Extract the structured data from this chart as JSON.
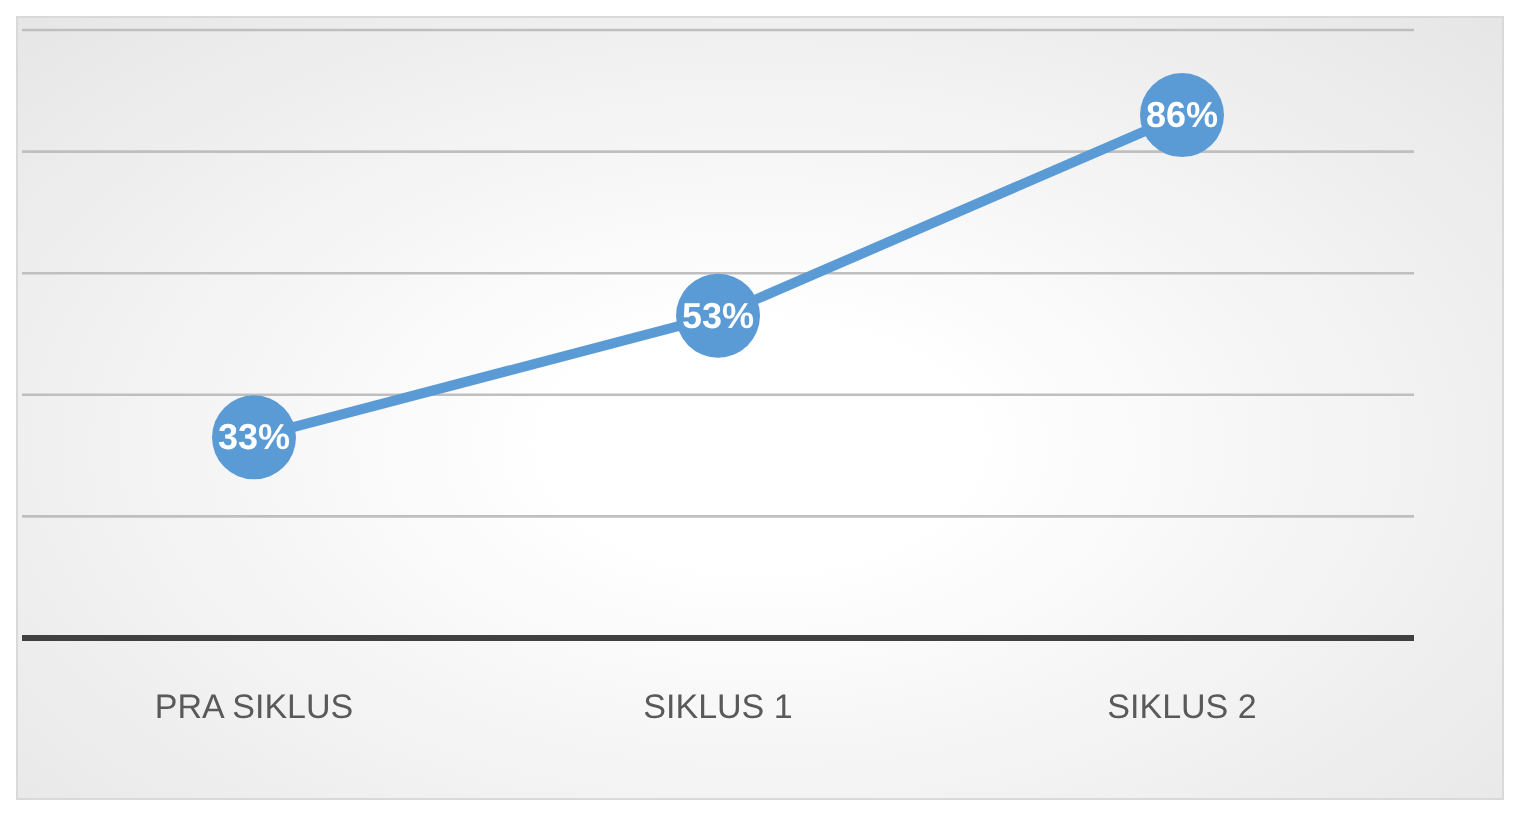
{
  "chart_data": {
    "type": "line",
    "categories": [
      "PRA SIKLUS",
      "SIKLUS 1",
      "SIKLUS 2"
    ],
    "series": [
      {
        "color": "#5b9bd5",
        "values": [
          33,
          53,
          86
        ],
        "value_labels": [
          "33%",
          "53%",
          "86%"
        ]
      }
    ],
    "ylim": [
      0,
      100
    ],
    "tick_labels": "x",
    "grid": "y",
    "marker": "circle",
    "line_style": "solid",
    "legend": false
  }
}
